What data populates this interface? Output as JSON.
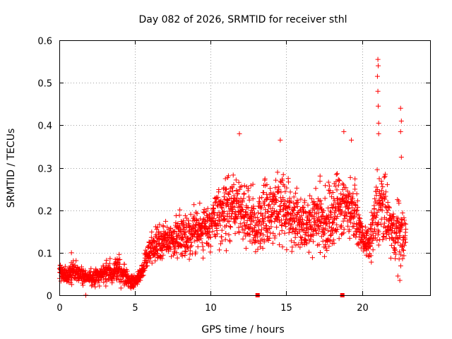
{
  "chart_data": {
    "type": "scatter",
    "title": "Day 082 of 2026, SRMTID for receiver sthl",
    "xlabel": "GPS time / hours",
    "ylabel": "SRMTID / TECUs",
    "xlim": [
      0,
      24.5
    ],
    "ylim": [
      0,
      0.6
    ],
    "xticks": [
      0,
      5,
      10,
      15,
      20
    ],
    "xtick_labels": [
      "0",
      "5",
      "10",
      "15",
      "20"
    ],
    "yticks": [
      0,
      0.1,
      0.2,
      0.3,
      0.4,
      0.5,
      0.6
    ],
    "ytick_labels": [
      "0",
      "0.1",
      "0.2",
      "0.3",
      "0.4",
      "0.5",
      "0.6"
    ],
    "grid": true,
    "marker": "+",
    "color": "#ff0000",
    "series": [
      {
        "name": "sthl",
        "envelope": {
          "x": [
            0.0,
            0.5,
            1.0,
            1.5,
            2.0,
            2.5,
            3.0,
            3.5,
            4.0,
            4.5,
            5.0,
            5.5,
            6.0,
            6.5,
            7.0,
            7.5,
            8.0,
            8.5,
            9.0,
            9.5,
            10.0,
            10.5,
            11.0,
            11.5,
            12.0,
            12.5,
            13.0,
            13.5,
            14.0,
            14.5,
            15.0,
            15.5,
            16.0,
            16.5,
            17.0,
            17.5,
            18.0,
            18.5,
            19.0,
            19.5,
            20.0,
            20.5,
            21.0,
            21.5,
            22.0,
            22.5,
            22.9
          ],
          "ylow": [
            0.03,
            0.025,
            0.025,
            0.025,
            0.02,
            0.02,
            0.02,
            0.02,
            0.015,
            0.015,
            0.015,
            0.03,
            0.07,
            0.07,
            0.07,
            0.08,
            0.08,
            0.08,
            0.09,
            0.09,
            0.09,
            0.1,
            0.1,
            0.12,
            0.11,
            0.1,
            0.07,
            0.08,
            0.1,
            0.1,
            0.1,
            0.09,
            0.1,
            0.08,
            0.1,
            0.06,
            0.07,
            0.1,
            0.12,
            0.12,
            0.1,
            0.07,
            0.07,
            0.1,
            0.07,
            0.04,
            0.1
          ],
          "yhigh": [
            0.08,
            0.07,
            0.09,
            0.07,
            0.06,
            0.07,
            0.08,
            0.09,
            0.1,
            0.06,
            0.05,
            0.08,
            0.15,
            0.17,
            0.18,
            0.18,
            0.2,
            0.2,
            0.22,
            0.22,
            0.25,
            0.27,
            0.3,
            0.3,
            0.28,
            0.27,
            0.25,
            0.3,
            0.28,
            0.33,
            0.3,
            0.27,
            0.25,
            0.25,
            0.28,
            0.28,
            0.3,
            0.33,
            0.3,
            0.28,
            0.17,
            0.16,
            0.33,
            0.3,
            0.22,
            0.25,
            0.18
          ]
        },
        "spikes": [
          {
            "x": 0.8,
            "y": 0.1
          },
          {
            "x": 1.75,
            "y": 0.0
          },
          {
            "x": 11.9,
            "y": 0.38
          },
          {
            "x": 14.6,
            "y": 0.365
          },
          {
            "x": 18.8,
            "y": 0.385
          },
          {
            "x": 19.3,
            "y": 0.365
          },
          {
            "x": 21.05,
            "y": 0.555
          },
          {
            "x": 21.07,
            "y": 0.54
          },
          {
            "x": 21.02,
            "y": 0.515
          },
          {
            "x": 21.05,
            "y": 0.48
          },
          {
            "x": 21.07,
            "y": 0.445
          },
          {
            "x": 21.1,
            "y": 0.405
          },
          {
            "x": 21.1,
            "y": 0.38
          },
          {
            "x": 22.55,
            "y": 0.44
          },
          {
            "x": 22.6,
            "y": 0.41
          },
          {
            "x": 22.55,
            "y": 0.385
          },
          {
            "x": 22.6,
            "y": 0.325
          },
          {
            "x": 22.5,
            "y": 0.035
          }
        ],
        "axis_markers": [
          {
            "x": 13.1,
            "y": 0.0
          },
          {
            "x": 18.7,
            "y": 0.0
          }
        ]
      }
    ]
  }
}
